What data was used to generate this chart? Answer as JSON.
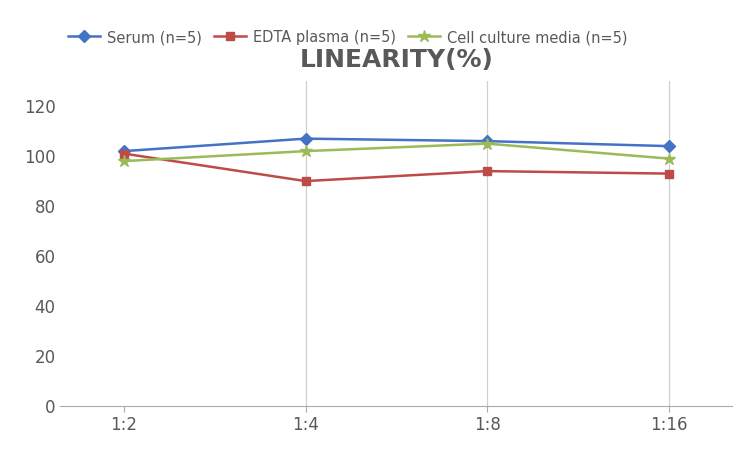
{
  "title": "LINEARITY(%)",
  "x_labels": [
    "1:2",
    "1:4",
    "1:8",
    "1:16"
  ],
  "x_positions": [
    0,
    1,
    2,
    3
  ],
  "series": [
    {
      "label": "Serum (n=5)",
      "values": [
        102,
        107,
        106,
        104
      ],
      "color": "#4472C4",
      "marker": "D",
      "markersize": 6,
      "linewidth": 1.8
    },
    {
      "label": "EDTA plasma (n=5)",
      "values": [
        101,
        90,
        94,
        93
      ],
      "color": "#BE4B48",
      "marker": "s",
      "markersize": 6,
      "linewidth": 1.8
    },
    {
      "label": "Cell culture media (n=5)",
      "values": [
        98,
        102,
        105,
        99
      ],
      "color": "#9BBB59",
      "marker": "*",
      "markersize": 9,
      "linewidth": 1.8
    }
  ],
  "ylim": [
    0,
    130
  ],
  "yticks": [
    0,
    20,
    40,
    60,
    80,
    100,
    120
  ],
  "background_color": "#ffffff",
  "title_fontsize": 18,
  "title_color": "#595959",
  "legend_fontsize": 10.5,
  "tick_fontsize": 12,
  "tick_color": "#595959"
}
